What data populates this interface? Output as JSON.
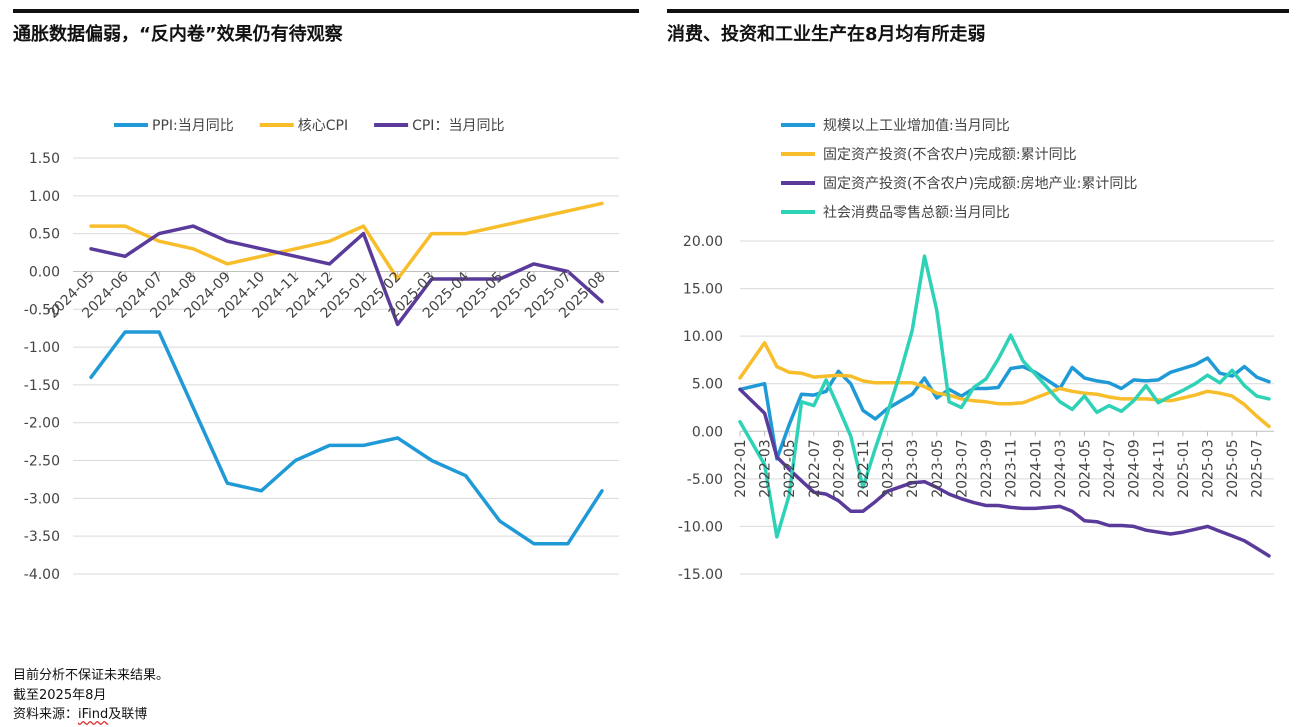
{
  "left_panel": {
    "title": "通胀数据偏弱，“反内卷”效果仍有待观察"
  },
  "right_panel": {
    "title": "消费、投资和工业生产在8月均有所走弱"
  },
  "footer": {
    "line1": "目前分析不保证未来结果。",
    "line2": "截至2025年8月",
    "line3_prefix": "资料来源：",
    "line3_highlight": "iFind",
    "line3_suffix": "及联博"
  },
  "chart_data": [
    {
      "type": "line",
      "categories": [
        "2024-05",
        "2024-06",
        "2024-07",
        "2024-08",
        "2024-09",
        "2024-10",
        "2024-11",
        "2024-12",
        "2025-01",
        "2025-02",
        "2025-03",
        "2025-04",
        "2025-05",
        "2025-06",
        "2025-07",
        "2025-08"
      ],
      "ylim": [
        -4,
        1.5
      ],
      "yticks": [
        "1.50",
        "1.00",
        "0.50",
        "0.00",
        "-0.50",
        "-1.00",
        "-1.50",
        "-2.00",
        "-2.50",
        "-3.00",
        "-3.50",
        "-4.00"
      ],
      "grid": true,
      "legend_position": "top",
      "series": [
        {
          "name": "PPI:当月同比",
          "color": "#1f9ad6",
          "values": [
            -1.4,
            -0.8,
            -0.8,
            -1.8,
            -2.8,
            -2.9,
            -2.5,
            -2.3,
            -2.3,
            -2.2,
            -2.5,
            -2.7,
            -3.3,
            -3.6,
            -3.6,
            -2.9
          ]
        },
        {
          "name": "核心CPI",
          "color": "#f8bd2a",
          "values": [
            0.6,
            0.6,
            0.4,
            0.3,
            0.1,
            0.2,
            0.3,
            0.4,
            0.6,
            -0.1,
            0.5,
            0.5,
            0.6,
            0.7,
            0.8,
            0.9
          ]
        },
        {
          "name": "CPI：当月同比",
          "color": "#5a3a9a",
          "values": [
            0.3,
            0.2,
            0.5,
            0.6,
            0.4,
            0.3,
            0.2,
            0.1,
            0.5,
            -0.7,
            -0.1,
            -0.1,
            -0.1,
            0.1,
            0.0,
            -0.4
          ]
        }
      ]
    },
    {
      "type": "line",
      "x_tick_labels": [
        "2022-01",
        "2022-03",
        "2022-05",
        "2022-07",
        "2022-09",
        "2022-11",
        "2023-01",
        "2023-03",
        "2023-05",
        "2023-07",
        "2023-09",
        "2023-11",
        "2024-01",
        "2024-03",
        "2024-05",
        "2024-07",
        "2024-09",
        "2024-11",
        "2025-01",
        "2025-03",
        "2025-05",
        "2025-07"
      ],
      "x_range": [
        "2022-01",
        "2025-08"
      ],
      "ylim": [
        -15,
        20
      ],
      "yticks": [
        "20.00",
        "15.00",
        "10.00",
        "5.00",
        "0.00",
        "-5.00",
        "-10.00",
        "-15.00"
      ],
      "grid": true,
      "legend_position": "top-left",
      "series": [
        {
          "name": "规模以上工业增加值:当月同比",
          "color": "#1f9ad6",
          "points": [
            [
              "2022-01",
              4.4
            ],
            [
              "2022-03",
              5.0
            ],
            [
              "2022-04",
              -2.9
            ],
            [
              "2022-05",
              0.7
            ],
            [
              "2022-06",
              3.9
            ],
            [
              "2022-07",
              3.8
            ],
            [
              "2022-08",
              4.2
            ],
            [
              "2022-09",
              6.3
            ],
            [
              "2022-10",
              5.0
            ],
            [
              "2022-11",
              2.2
            ],
            [
              "2022-12",
              1.3
            ],
            [
              "2023-01",
              2.4
            ],
            [
              "2023-03",
              3.9
            ],
            [
              "2023-04",
              5.6
            ],
            [
              "2023-05",
              3.5
            ],
            [
              "2023-06",
              4.4
            ],
            [
              "2023-07",
              3.7
            ],
            [
              "2023-08",
              4.5
            ],
            [
              "2023-09",
              4.5
            ],
            [
              "2023-10",
              4.6
            ],
            [
              "2023-11",
              6.6
            ],
            [
              "2023-12",
              6.8
            ],
            [
              "2024-01",
              6.2
            ],
            [
              "2024-03",
              4.5
            ],
            [
              "2024-04",
              6.7
            ],
            [
              "2024-05",
              5.6
            ],
            [
              "2024-06",
              5.3
            ],
            [
              "2024-07",
              5.1
            ],
            [
              "2024-08",
              4.5
            ],
            [
              "2024-09",
              5.4
            ],
            [
              "2024-10",
              5.3
            ],
            [
              "2024-11",
              5.4
            ],
            [
              "2024-12",
              6.2
            ],
            [
              "2025-01",
              6.6
            ],
            [
              "2025-02",
              7.0
            ],
            [
              "2025-03",
              7.7
            ],
            [
              "2025-04",
              6.1
            ],
            [
              "2025-05",
              5.8
            ],
            [
              "2025-06",
              6.8
            ],
            [
              "2025-07",
              5.7
            ],
            [
              "2025-08",
              5.2
            ]
          ]
        },
        {
          "name": "固定资产投资(不含农户)完成额:累计同比",
          "color": "#f8bd2a",
          "points": [
            [
              "2022-01",
              5.6
            ],
            [
              "2022-03",
              9.3
            ],
            [
              "2022-04",
              6.8
            ],
            [
              "2022-05",
              6.2
            ],
            [
              "2022-06",
              6.1
            ],
            [
              "2022-07",
              5.7
            ],
            [
              "2022-08",
              5.8
            ],
            [
              "2022-09",
              5.9
            ],
            [
              "2022-10",
              5.8
            ],
            [
              "2022-11",
              5.3
            ],
            [
              "2022-12",
              5.1
            ],
            [
              "2023-01",
              5.1
            ],
            [
              "2023-03",
              5.1
            ],
            [
              "2023-04",
              4.7
            ],
            [
              "2023-05",
              4.0
            ],
            [
              "2023-06",
              3.8
            ],
            [
              "2023-07",
              3.4
            ],
            [
              "2023-08",
              3.2
            ],
            [
              "2023-09",
              3.1
            ],
            [
              "2023-10",
              2.9
            ],
            [
              "2023-11",
              2.9
            ],
            [
              "2023-12",
              3.0
            ],
            [
              "2024-01",
              3.5
            ],
            [
              "2024-03",
              4.5
            ],
            [
              "2024-04",
              4.2
            ],
            [
              "2024-05",
              4.0
            ],
            [
              "2024-06",
              3.9
            ],
            [
              "2024-07",
              3.6
            ],
            [
              "2024-08",
              3.4
            ],
            [
              "2024-09",
              3.4
            ],
            [
              "2024-10",
              3.4
            ],
            [
              "2024-11",
              3.3
            ],
            [
              "2024-12",
              3.2
            ],
            [
              "2025-01",
              3.5
            ],
            [
              "2025-02",
              3.8
            ],
            [
              "2025-03",
              4.2
            ],
            [
              "2025-04",
              4.0
            ],
            [
              "2025-05",
              3.7
            ],
            [
              "2025-06",
              2.8
            ],
            [
              "2025-07",
              1.6
            ],
            [
              "2025-08",
              0.5
            ]
          ]
        },
        {
          "name": "固定资产投资(不含农户)完成额:房地产业:累计同比",
          "color": "#5a3a9a",
          "points": [
            [
              "2022-01",
              4.4
            ],
            [
              "2022-03",
              1.9
            ],
            [
              "2022-04",
              -2.7
            ],
            [
              "2022-05",
              -4.0
            ],
            [
              "2022-06",
              -5.2
            ],
            [
              "2022-07",
              -6.4
            ],
            [
              "2022-08",
              -6.6
            ],
            [
              "2022-09",
              -7.3
            ],
            [
              "2022-10",
              -8.4
            ],
            [
              "2022-11",
              -8.4
            ],
            [
              "2022-12",
              -7.4
            ],
            [
              "2023-01",
              -6.3
            ],
            [
              "2023-03",
              -5.4
            ],
            [
              "2023-04",
              -5.3
            ],
            [
              "2023-05",
              -5.9
            ],
            [
              "2023-06",
              -6.6
            ],
            [
              "2023-07",
              -7.1
            ],
            [
              "2023-08",
              -7.5
            ],
            [
              "2023-09",
              -7.8
            ],
            [
              "2023-10",
              -7.8
            ],
            [
              "2023-11",
              -8.0
            ],
            [
              "2023-12",
              -8.1
            ],
            [
              "2024-01",
              -8.1
            ],
            [
              "2024-03",
              -7.9
            ],
            [
              "2024-04",
              -8.4
            ],
            [
              "2024-05",
              -9.4
            ],
            [
              "2024-06",
              -9.5
            ],
            [
              "2024-07",
              -9.9
            ],
            [
              "2024-08",
              -9.9
            ],
            [
              "2024-09",
              -10.0
            ],
            [
              "2024-10",
              -10.4
            ],
            [
              "2024-11",
              -10.6
            ],
            [
              "2024-12",
              -10.8
            ],
            [
              "2025-01",
              -10.6
            ],
            [
              "2025-02",
              -10.3
            ],
            [
              "2025-03",
              -10.0
            ],
            [
              "2025-04",
              -10.5
            ],
            [
              "2025-05",
              -11.0
            ],
            [
              "2025-06",
              -11.5
            ],
            [
              "2025-07",
              -12.3
            ],
            [
              "2025-08",
              -13.1
            ]
          ]
        },
        {
          "name": "社会消费品零售总额:当月同比",
          "color": "#2ed2b6",
          "points": [
            [
              "2022-01",
              1.0
            ],
            [
              "2022-03",
              -3.5
            ],
            [
              "2022-04",
              -11.1
            ],
            [
              "2022-05",
              -6.7
            ],
            [
              "2022-06",
              3.1
            ],
            [
              "2022-07",
              2.7
            ],
            [
              "2022-08",
              5.4
            ],
            [
              "2022-09",
              2.5
            ],
            [
              "2022-10",
              -0.5
            ],
            [
              "2022-11",
              -5.9
            ],
            [
              "2022-12",
              -1.8
            ],
            [
              "2023-01",
              2.0
            ],
            [
              "2023-02",
              6.0
            ],
            [
              "2023-03",
              10.6
            ],
            [
              "2023-04",
              18.4
            ],
            [
              "2023-05",
              12.7
            ],
            [
              "2023-06",
              3.1
            ],
            [
              "2023-07",
              2.5
            ],
            [
              "2023-08",
              4.6
            ],
            [
              "2023-09",
              5.5
            ],
            [
              "2023-10",
              7.6
            ],
            [
              "2023-11",
              10.1
            ],
            [
              "2023-12",
              7.4
            ],
            [
              "2024-01",
              6.0
            ],
            [
              "2024-03",
              3.1
            ],
            [
              "2024-04",
              2.3
            ],
            [
              "2024-05",
              3.7
            ],
            [
              "2024-06",
              2.0
            ],
            [
              "2024-07",
              2.7
            ],
            [
              "2024-08",
              2.1
            ],
            [
              "2024-09",
              3.2
            ],
            [
              "2024-10",
              4.8
            ],
            [
              "2024-11",
              3.0
            ],
            [
              "2024-12",
              3.7
            ],
            [
              "2025-01",
              4.3
            ],
            [
              "2025-02",
              5.0
            ],
            [
              "2025-03",
              5.9
            ],
            [
              "2025-04",
              5.1
            ],
            [
              "2025-05",
              6.4
            ],
            [
              "2025-06",
              4.8
            ],
            [
              "2025-07",
              3.7
            ],
            [
              "2025-08",
              3.4
            ]
          ]
        }
      ]
    }
  ]
}
